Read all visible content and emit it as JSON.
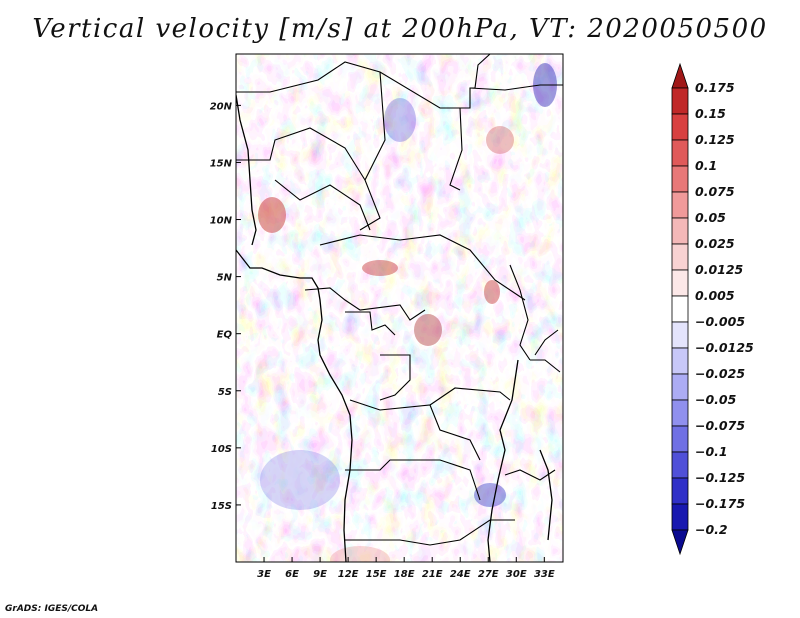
{
  "title": "Vertical velocity [m/s] at 200hPa, VT: 2020050500",
  "credit": "GrADS: IGES/COLA",
  "map": {
    "lon_range": [
      0,
      35
    ],
    "lat_range": [
      -20,
      24.5
    ],
    "lat_ticks": [
      {
        "value": 20,
        "label": "20N"
      },
      {
        "value": 15,
        "label": "15N"
      },
      {
        "value": 10,
        "label": "10N"
      },
      {
        "value": 5,
        "label": "5N"
      },
      {
        "value": 0,
        "label": "EQ"
      },
      {
        "value": -5,
        "label": "5S"
      },
      {
        "value": -10,
        "label": "10S"
      },
      {
        "value": -15,
        "label": "15S"
      }
    ],
    "lon_ticks": [
      {
        "value": 3,
        "label": "3E"
      },
      {
        "value": 6,
        "label": "6E"
      },
      {
        "value": 9,
        "label": "9E"
      },
      {
        "value": 12,
        "label": "12E"
      },
      {
        "value": 15,
        "label": "15E"
      },
      {
        "value": 18,
        "label": "18E"
      },
      {
        "value": 21,
        "label": "21E"
      },
      {
        "value": 24,
        "label": "24E"
      },
      {
        "value": 27,
        "label": "27E"
      },
      {
        "value": 30,
        "label": "30E"
      },
      {
        "value": 33,
        "label": "33E"
      }
    ]
  },
  "colorbar": {
    "levels": [
      "0.175",
      "0.15",
      "0.125",
      "0.1",
      "0.075",
      "0.05",
      "0.025",
      "0.0125",
      "0.005",
      "−0.005",
      "−0.0125",
      "−0.025",
      "−0.05",
      "−0.075",
      "−0.1",
      "−0.125",
      "−0.175",
      "−0.2"
    ],
    "colors": [
      "#a01818",
      "#c02828",
      "#d84040",
      "#e05a5a",
      "#e87878",
      "#f09a9a",
      "#f4b8b8",
      "#f8d2d2",
      "#fce8e8",
      "#ffffff",
      "#e4e4fc",
      "#c8c8f8",
      "#acacf4",
      "#9090ee",
      "#7070e4",
      "#5050d8",
      "#3030c8",
      "#1818b0",
      "#0a0a90"
    ]
  }
}
